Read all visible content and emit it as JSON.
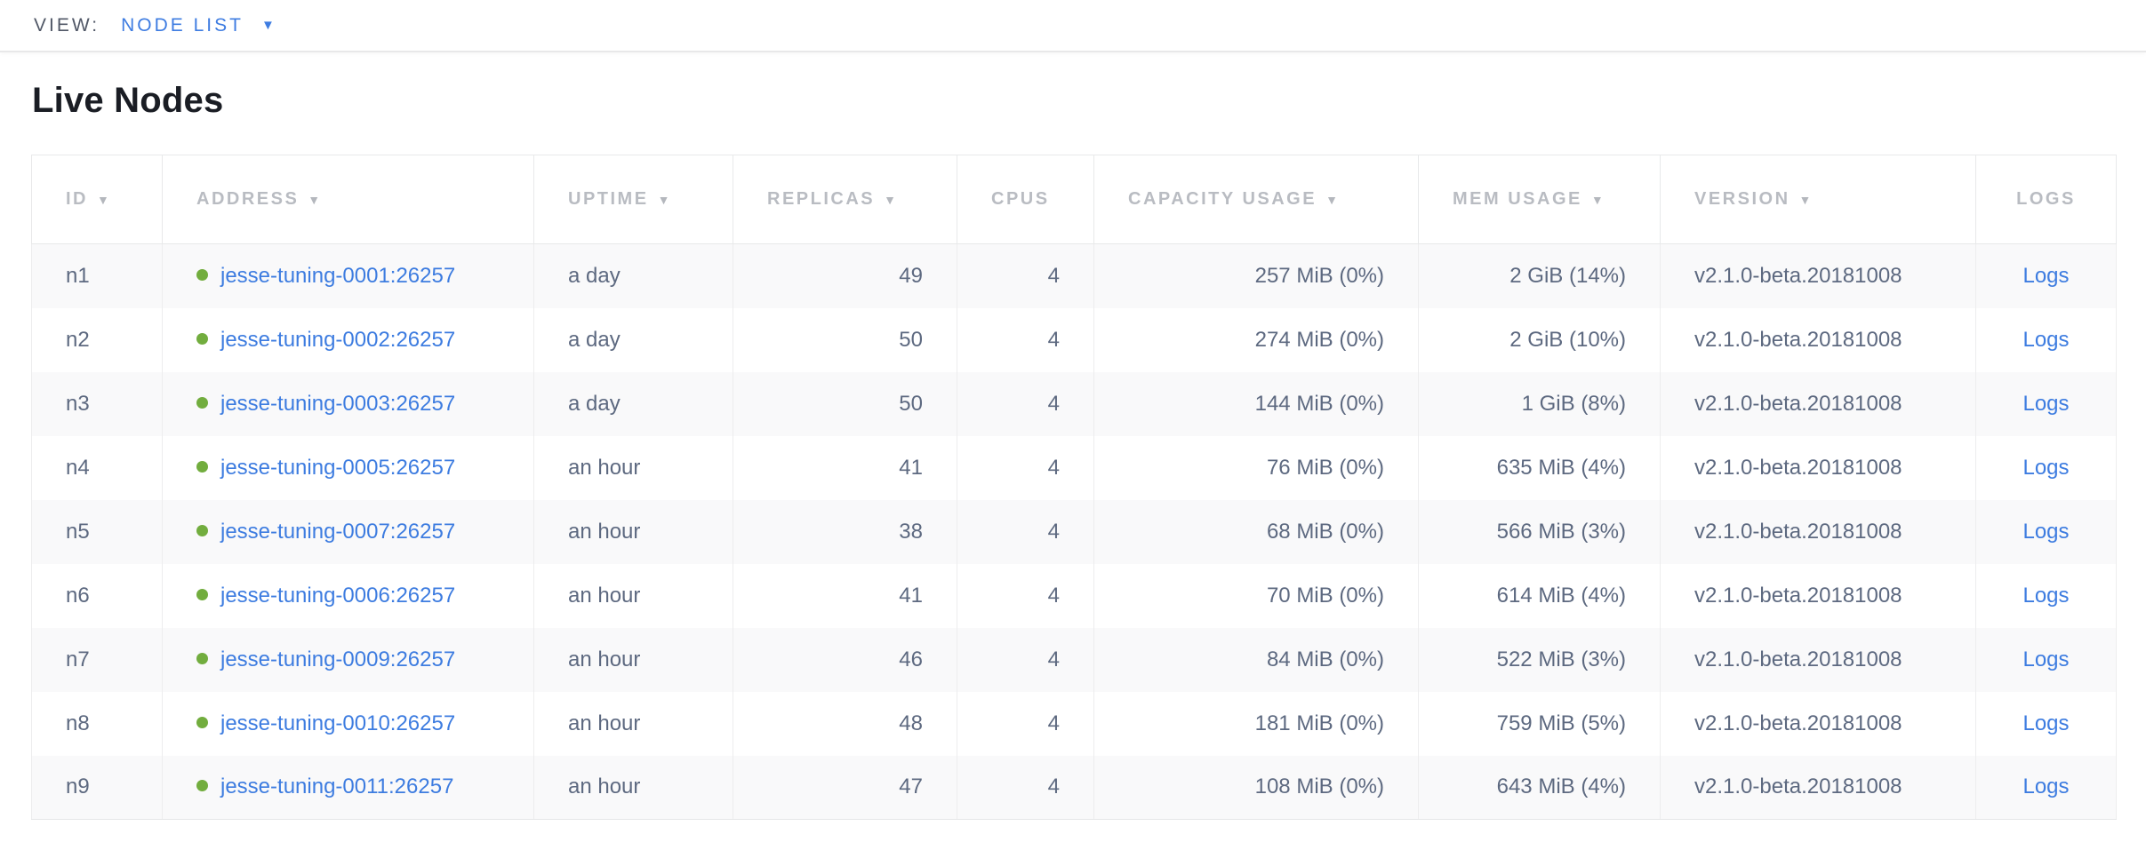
{
  "view_bar": {
    "label": "VIEW:",
    "selected": "NODE LIST",
    "caret_icon": "▼"
  },
  "page": {
    "title": "Live Nodes"
  },
  "table": {
    "sort_icon": "▼",
    "status_dot_color": "#72ad3e",
    "link_color": "#3d7ce0",
    "columns": [
      {
        "key": "id",
        "label": "ID",
        "sortable": true,
        "align": "left"
      },
      {
        "key": "address",
        "label": "ADDRESS",
        "sortable": true,
        "align": "left"
      },
      {
        "key": "uptime",
        "label": "UPTIME",
        "sortable": true,
        "align": "left"
      },
      {
        "key": "replicas",
        "label": "REPLICAS",
        "sortable": true,
        "align": "right"
      },
      {
        "key": "cpus",
        "label": "CPUS",
        "sortable": false,
        "align": "right"
      },
      {
        "key": "capacity",
        "label": "CAPACITY USAGE",
        "sortable": true,
        "align": "right"
      },
      {
        "key": "mem",
        "label": "MEM USAGE",
        "sortable": true,
        "align": "right"
      },
      {
        "key": "version",
        "label": "VERSION",
        "sortable": true,
        "align": "left"
      },
      {
        "key": "logs",
        "label": "LOGS",
        "sortable": false,
        "align": "center"
      }
    ],
    "rows": [
      {
        "id": "n1",
        "address": "jesse-tuning-0001:26257",
        "uptime": "a day",
        "replicas": "49",
        "cpus": "4",
        "capacity": "257 MiB (0%)",
        "mem": "2 GiB (14%)",
        "version": "v2.1.0-beta.20181008",
        "logs": "Logs"
      },
      {
        "id": "n2",
        "address": "jesse-tuning-0002:26257",
        "uptime": "a day",
        "replicas": "50",
        "cpus": "4",
        "capacity": "274 MiB (0%)",
        "mem": "2 GiB (10%)",
        "version": "v2.1.0-beta.20181008",
        "logs": "Logs"
      },
      {
        "id": "n3",
        "address": "jesse-tuning-0003:26257",
        "uptime": "a day",
        "replicas": "50",
        "cpus": "4",
        "capacity": "144 MiB (0%)",
        "mem": "1 GiB (8%)",
        "version": "v2.1.0-beta.20181008",
        "logs": "Logs"
      },
      {
        "id": "n4",
        "address": "jesse-tuning-0005:26257",
        "uptime": "an hour",
        "replicas": "41",
        "cpus": "4",
        "capacity": "76 MiB (0%)",
        "mem": "635 MiB (4%)",
        "version": "v2.1.0-beta.20181008",
        "logs": "Logs"
      },
      {
        "id": "n5",
        "address": "jesse-tuning-0007:26257",
        "uptime": "an hour",
        "replicas": "38",
        "cpus": "4",
        "capacity": "68 MiB (0%)",
        "mem": "566 MiB (3%)",
        "version": "v2.1.0-beta.20181008",
        "logs": "Logs"
      },
      {
        "id": "n6",
        "address": "jesse-tuning-0006:26257",
        "uptime": "an hour",
        "replicas": "41",
        "cpus": "4",
        "capacity": "70 MiB (0%)",
        "mem": "614 MiB (4%)",
        "version": "v2.1.0-beta.20181008",
        "logs": "Logs"
      },
      {
        "id": "n7",
        "address": "jesse-tuning-0009:26257",
        "uptime": "an hour",
        "replicas": "46",
        "cpus": "4",
        "capacity": "84 MiB (0%)",
        "mem": "522 MiB (3%)",
        "version": "v2.1.0-beta.20181008",
        "logs": "Logs"
      },
      {
        "id": "n8",
        "address": "jesse-tuning-0010:26257",
        "uptime": "an hour",
        "replicas": "48",
        "cpus": "4",
        "capacity": "181 MiB (0%)",
        "mem": "759 MiB (5%)",
        "version": "v2.1.0-beta.20181008",
        "logs": "Logs"
      },
      {
        "id": "n9",
        "address": "jesse-tuning-0011:26257",
        "uptime": "an hour",
        "replicas": "47",
        "cpus": "4",
        "capacity": "108 MiB (0%)",
        "mem": "643 MiB (4%)",
        "version": "v2.1.0-beta.20181008",
        "logs": "Logs"
      }
    ]
  }
}
